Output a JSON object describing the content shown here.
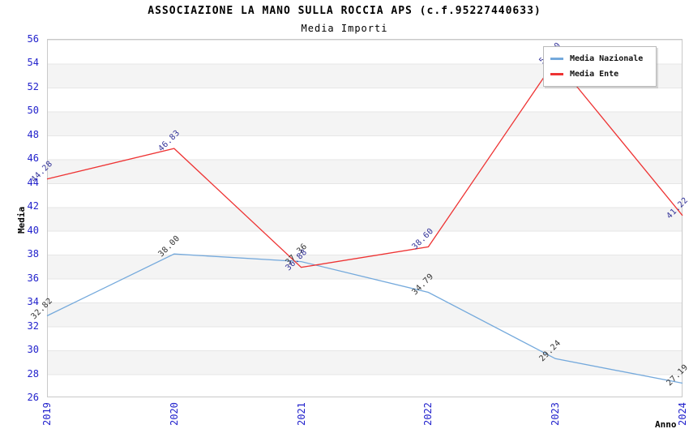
{
  "page": {
    "title": "ASSOCIAZIONE LA MANO SULLA ROCCIA APS (c.f.95227440633)",
    "subtitle": "Media Importi"
  },
  "chart_data": {
    "type": "line",
    "title": "ASSOCIAZIONE LA MANO SULLA ROCCIA APS (c.f.95227440633)",
    "subtitle": "Media Importi",
    "xlabel": "Anno",
    "ylabel": "Media",
    "categories": [
      "2019",
      "2020",
      "2021",
      "2022",
      "2023",
      "2024"
    ],
    "series": [
      {
        "name": "Media Nazionale",
        "color": "#74a9dc",
        "label_color": "#333333",
        "values": [
          32.82,
          38.0,
          37.36,
          34.79,
          29.24,
          27.19
        ]
      },
      {
        "name": "Media Ente",
        "color": "#ee3333",
        "label_color": "#333399",
        "values": [
          44.28,
          46.83,
          36.88,
          38.6,
          54.2,
          41.22
        ]
      }
    ],
    "ylim": [
      26,
      56
    ],
    "ytick_step": 2,
    "grid": "horizontal-bands",
    "legend_position": "top-right",
    "annotations": "Point labels rotated 45deg; 2023 Media Ente label partially hidden behind legend box"
  },
  "colors": {
    "axis_tick_text": "#2222cc",
    "band_gray": "#f4f4f4",
    "plot_border": "#c9c9c9",
    "background": "#ffffff",
    "title_text": "#000000"
  }
}
